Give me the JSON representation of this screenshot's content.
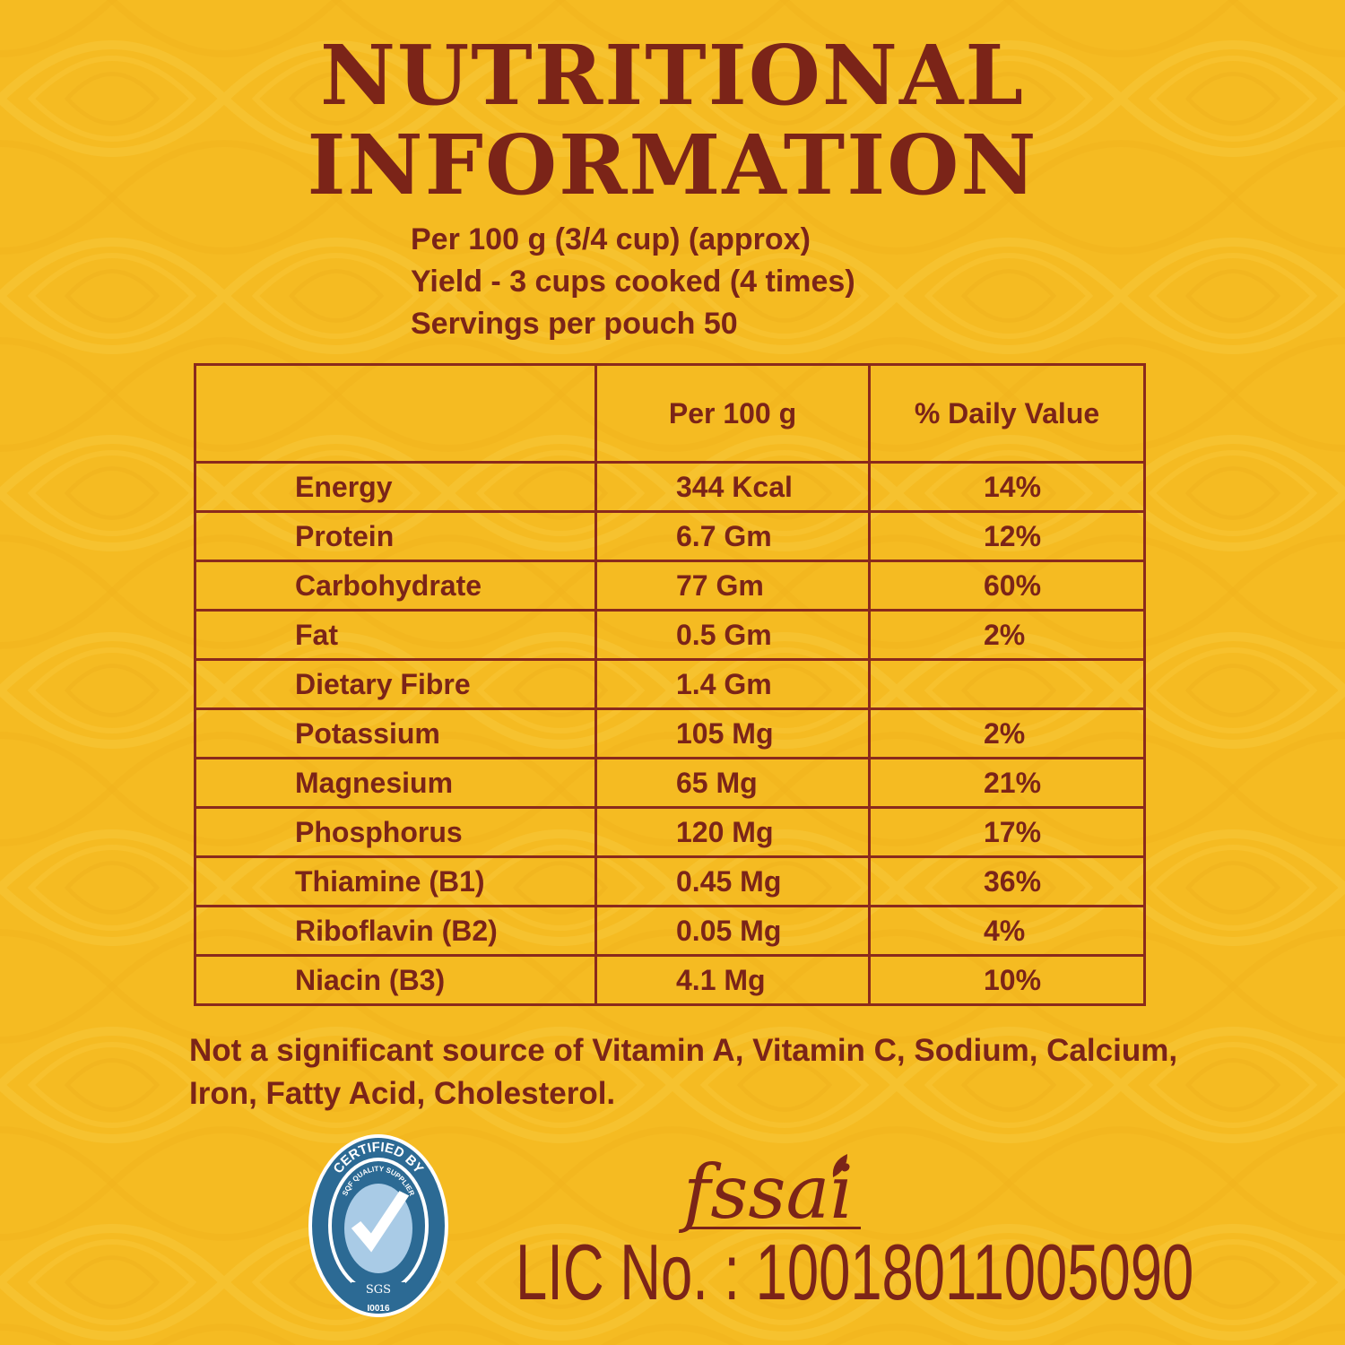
{
  "title": {
    "line1": "NUTRITIONAL",
    "line2": "INFORMATION"
  },
  "serving": {
    "per": "Per 100 g (3/4 cup) (approx)",
    "yield": "Yield - 3 cups cooked (4 times)",
    "servings": "Servings per pouch 50"
  },
  "table": {
    "headers": [
      "",
      "Per 100 g",
      "% Daily Value"
    ],
    "rows": [
      {
        "nutrient": "Energy",
        "amount": "344 Kcal",
        "dv": "14%"
      },
      {
        "nutrient": "Protein",
        "amount": "6.7 Gm",
        "dv": "12%"
      },
      {
        "nutrient": "Carbohydrate",
        "amount": "77 Gm",
        "dv": "60%"
      },
      {
        "nutrient": "Fat",
        "amount": "0.5 Gm",
        "dv": "2%"
      },
      {
        "nutrient": "Dietary Fibre",
        "amount": "1.4 Gm",
        "dv": ""
      },
      {
        "nutrient": "Potassium",
        "amount": "105 Mg",
        "dv": "2%"
      },
      {
        "nutrient": "Magnesium",
        "amount": "65 Mg",
        "dv": "21%"
      },
      {
        "nutrient": "Phosphorus",
        "amount": "120 Mg",
        "dv": "17%"
      },
      {
        "nutrient": "Thiamine (B1)",
        "amount": "0.45 Mg",
        "dv": "36%"
      },
      {
        "nutrient": "Riboflavin (B2)",
        "amount": "0.05 Mg",
        "dv": "4%"
      },
      {
        "nutrient": "Niacin (B3)",
        "amount": "4.1 Mg",
        "dv": "10%"
      }
    ]
  },
  "note": "Not a significant source of Vitamin A, Vitamin C, Sodium, Calcium, Iron, Fatty Acid, Cholesterol.",
  "certification": {
    "top_text": "CERTIFIED BY",
    "ring_text": "SQF QUALITY SUPPLIER",
    "org": "SGS",
    "code": "I0016",
    "icon": "checkmark-icon"
  },
  "fssai": {
    "logo_text": "fssai",
    "lic": "LIC No. : 10018011005090"
  },
  "colors": {
    "background": "#f5bb22",
    "text": "#7b2418",
    "badge_blue": "#2c6a94"
  }
}
